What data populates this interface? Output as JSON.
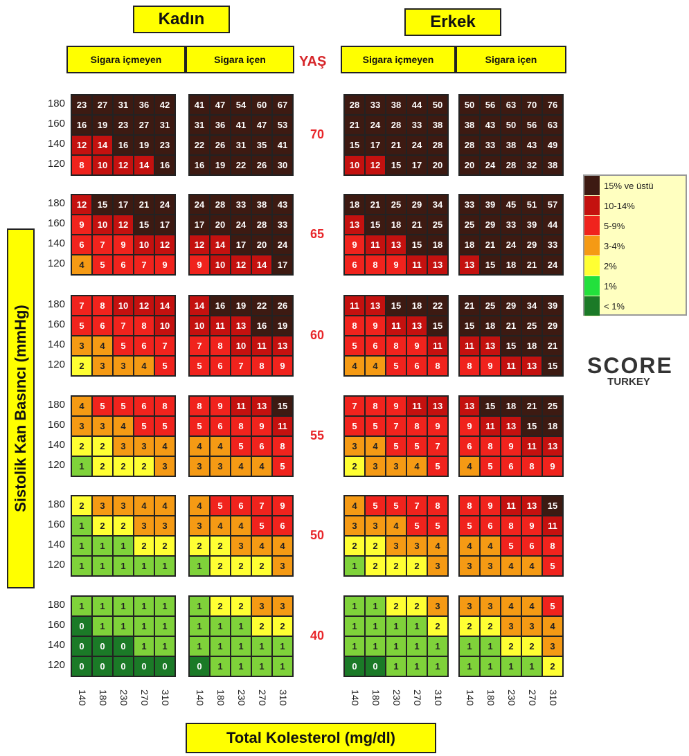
{
  "header": {
    "female": "Kadın",
    "male": "Erkek",
    "nonsmoker_f": "Sigara içmeyen",
    "smoker_f": "Sigara içen",
    "age_label": "YAŞ",
    "nonsmoker_m": "Sigara içmeyen",
    "smoker_m": "Sigara içen"
  },
  "y_axis_title": "Sistolik Kan Basıncı (mmHg)",
  "x_axis_title": "Total Kolesterol (mg/dl)",
  "logo": {
    "top": "SCORE",
    "bottom": "TURKEY"
  },
  "legend": [
    {
      "label": "15% ve üstü",
      "color": "#3d1a12"
    },
    {
      "label": "10-14%",
      "color": "#c4110f"
    },
    {
      "label": "5-9%",
      "color": "#f0231d"
    },
    {
      "label": "3-4%",
      "color": "#f59a14"
    },
    {
      "label": "2%",
      "color": "#ffff33"
    },
    {
      "label": "1%",
      "color": "#22e03c"
    },
    {
      "label": "< 1%",
      "color": "#1b7a27"
    }
  ],
  "chart_data": {
    "type": "heatmap",
    "ages": [
      "70",
      "65",
      "60",
      "55",
      "50",
      "40"
    ],
    "sbp_labels": [
      "180",
      "160",
      "140",
      "120"
    ],
    "chol_labels": [
      "140",
      "180",
      "230",
      "270",
      "310"
    ],
    "panels": {
      "70": {
        "female_nonsmoker": [
          [
            23,
            27,
            31,
            36,
            42
          ],
          [
            16,
            19,
            23,
            27,
            31
          ],
          [
            12,
            14,
            16,
            19,
            23
          ],
          [
            8,
            10,
            12,
            14,
            16
          ]
        ],
        "female_smoker": [
          [
            41,
            47,
            54,
            60,
            67
          ],
          [
            31,
            36,
            41,
            47,
            53
          ],
          [
            22,
            26,
            31,
            35,
            41
          ],
          [
            16,
            19,
            22,
            26,
            30
          ]
        ],
        "male_nonsmoker": [
          [
            28,
            33,
            38,
            44,
            50
          ],
          [
            21,
            24,
            28,
            33,
            38
          ],
          [
            15,
            17,
            21,
            24,
            28
          ],
          [
            10,
            12,
            15,
            17,
            20
          ]
        ],
        "male_smoker": [
          [
            50,
            56,
            63,
            70,
            76
          ],
          [
            38,
            43,
            50,
            56,
            63
          ],
          [
            28,
            33,
            38,
            43,
            49
          ],
          [
            20,
            24,
            28,
            32,
            38
          ]
        ]
      },
      "65": {
        "female_nonsmoker": [
          [
            12,
            15,
            17,
            21,
            24
          ],
          [
            9,
            10,
            12,
            15,
            17
          ],
          [
            6,
            7,
            9,
            10,
            12
          ],
          [
            4,
            5,
            6,
            7,
            9
          ]
        ],
        "female_smoker": [
          [
            24,
            28,
            33,
            38,
            43
          ],
          [
            17,
            20,
            24,
            28,
            33
          ],
          [
            12,
            14,
            17,
            20,
            24
          ],
          [
            9,
            10,
            12,
            14,
            17
          ]
        ],
        "male_nonsmoker": [
          [
            18,
            21,
            25,
            29,
            34
          ],
          [
            13,
            15,
            18,
            21,
            25
          ],
          [
            9,
            11,
            13,
            15,
            18
          ],
          [
            6,
            8,
            9,
            11,
            13
          ]
        ],
        "male_smoker": [
          [
            33,
            39,
            45,
            51,
            57
          ],
          [
            25,
            29,
            33,
            39,
            44
          ],
          [
            18,
            21,
            24,
            29,
            33
          ],
          [
            13,
            15,
            18,
            21,
            24
          ]
        ]
      },
      "60": {
        "female_nonsmoker": [
          [
            7,
            8,
            10,
            12,
            14
          ],
          [
            5,
            6,
            7,
            8,
            10
          ],
          [
            3,
            4,
            5,
            6,
            7
          ],
          [
            2,
            3,
            3,
            4,
            5
          ]
        ],
        "female_smoker": [
          [
            14,
            16,
            19,
            22,
            26
          ],
          [
            10,
            11,
            13,
            16,
            19
          ],
          [
            7,
            8,
            10,
            11,
            13
          ],
          [
            5,
            6,
            7,
            8,
            9
          ]
        ],
        "male_nonsmoker": [
          [
            11,
            13,
            15,
            18,
            22
          ],
          [
            8,
            9,
            11,
            13,
            15
          ],
          [
            5,
            6,
            8,
            9,
            11
          ],
          [
            4,
            4,
            5,
            6,
            8
          ]
        ],
        "male_smoker": [
          [
            21,
            25,
            29,
            34,
            39
          ],
          [
            15,
            18,
            21,
            25,
            29
          ],
          [
            11,
            13,
            15,
            18,
            21
          ],
          [
            8,
            9,
            11,
            13,
            15
          ]
        ]
      },
      "55": {
        "female_nonsmoker": [
          [
            4,
            5,
            5,
            6,
            8
          ],
          [
            3,
            3,
            4,
            5,
            5
          ],
          [
            2,
            2,
            3,
            3,
            4
          ],
          [
            1,
            2,
            2,
            2,
            3
          ]
        ],
        "female_smoker": [
          [
            8,
            9,
            11,
            13,
            15
          ],
          [
            5,
            6,
            8,
            9,
            11
          ],
          [
            4,
            4,
            5,
            6,
            8
          ],
          [
            3,
            3,
            4,
            4,
            5
          ]
        ],
        "male_nonsmoker": [
          [
            7,
            8,
            9,
            11,
            13
          ],
          [
            5,
            5,
            7,
            8,
            9
          ],
          [
            3,
            4,
            5,
            5,
            7
          ],
          [
            2,
            3,
            3,
            4,
            5
          ]
        ],
        "male_smoker": [
          [
            13,
            15,
            18,
            21,
            25
          ],
          [
            9,
            11,
            13,
            15,
            18
          ],
          [
            6,
            8,
            9,
            11,
            13
          ],
          [
            4,
            5,
            6,
            8,
            9
          ]
        ]
      },
      "50": {
        "female_nonsmoker": [
          [
            2,
            3,
            3,
            4,
            4
          ],
          [
            1,
            2,
            2,
            3,
            3
          ],
          [
            1,
            1,
            1,
            2,
            2
          ],
          [
            1,
            1,
            1,
            1,
            1
          ]
        ],
        "female_smoker": [
          [
            4,
            5,
            6,
            7,
            9
          ],
          [
            3,
            4,
            4,
            5,
            6
          ],
          [
            2,
            2,
            3,
            4,
            4
          ],
          [
            1,
            2,
            2,
            2,
            3
          ]
        ],
        "male_nonsmoker": [
          [
            4,
            5,
            5,
            7,
            8
          ],
          [
            3,
            3,
            4,
            5,
            5
          ],
          [
            2,
            2,
            3,
            3,
            4
          ],
          [
            1,
            2,
            2,
            2,
            3
          ]
        ],
        "male_smoker": [
          [
            8,
            9,
            11,
            13,
            15
          ],
          [
            5,
            6,
            8,
            9,
            11
          ],
          [
            4,
            4,
            5,
            6,
            8
          ],
          [
            3,
            3,
            4,
            4,
            5
          ]
        ]
      },
      "40": {
        "female_nonsmoker": [
          [
            1,
            1,
            1,
            1,
            1
          ],
          [
            0,
            1,
            1,
            1,
            1
          ],
          [
            0,
            0,
            0,
            1,
            1
          ],
          [
            0,
            0,
            0,
            0,
            0
          ]
        ],
        "female_smoker": [
          [
            1,
            2,
            2,
            3,
            3
          ],
          [
            1,
            1,
            1,
            2,
            2
          ],
          [
            1,
            1,
            1,
            1,
            1
          ],
          [
            0,
            1,
            1,
            1,
            1
          ]
        ],
        "male_nonsmoker": [
          [
            1,
            1,
            2,
            2,
            3
          ],
          [
            1,
            1,
            1,
            1,
            2
          ],
          [
            1,
            1,
            1,
            1,
            1
          ],
          [
            0,
            0,
            1,
            1,
            1
          ]
        ],
        "male_smoker": [
          [
            3,
            3,
            4,
            4,
            5
          ],
          [
            2,
            2,
            3,
            3,
            4
          ],
          [
            1,
            1,
            2,
            2,
            3
          ],
          [
            1,
            1,
            1,
            1,
            2
          ]
        ]
      }
    }
  }
}
